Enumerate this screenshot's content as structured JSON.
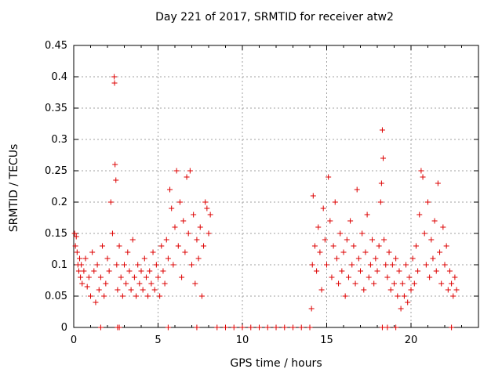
{
  "chart_data": {
    "type": "scatter",
    "title": "Day 221 of 2017, SRMTID for receiver atw2",
    "xlabel": "GPS time / hours",
    "ylabel": "SRMTID / TECUs",
    "xlim": [
      0,
      24
    ],
    "ylim": [
      0,
      0.45
    ],
    "xticks": [
      0,
      5,
      10,
      15,
      20
    ],
    "xtick_labels": [
      "0",
      "5",
      "10",
      "15",
      "20"
    ],
    "yticks": [
      0,
      0.05,
      0.1,
      0.15,
      0.2,
      0.25,
      0.3,
      0.35,
      0.4,
      0.45
    ],
    "ytick_labels": [
      "0",
      "0.05",
      "0.1",
      "0.15",
      "0.2",
      "0.25",
      "0.3",
      "0.35",
      "0.4",
      "0.45"
    ],
    "grid": true,
    "marker": "+",
    "color": "#dd0000",
    "series": [
      {
        "name": "SRMTID",
        "points": [
          [
            0.05,
            0.15
          ],
          [
            0.1,
            0.13
          ],
          [
            0.15,
            0.145
          ],
          [
            0.2,
            0.12
          ],
          [
            0.25,
            0.1
          ],
          [
            0.3,
            0.09
          ],
          [
            0.35,
            0.11
          ],
          [
            0.4,
            0.08
          ],
          [
            0.45,
            0.1
          ],
          [
            0.5,
            0.07
          ],
          [
            0.6,
            0.09
          ],
          [
            0.7,
            0.11
          ],
          [
            0.8,
            0.065
          ],
          [
            0.9,
            0.08
          ],
          [
            1.0,
            0.05
          ],
          [
            1.1,
            0.12
          ],
          [
            1.2,
            0.09
          ],
          [
            1.3,
            0.04
          ],
          [
            1.4,
            0.1
          ],
          [
            1.5,
            0.06
          ],
          [
            1.6,
            0.08
          ],
          [
            1.7,
            0.13
          ],
          [
            1.8,
            0.05
          ],
          [
            1.9,
            0.07
          ],
          [
            2.0,
            0.11
          ],
          [
            2.1,
            0.09
          ],
          [
            2.2,
            0.2
          ],
          [
            2.3,
            0.15
          ],
          [
            2.4,
            0.4
          ],
          [
            2.42,
            0.39
          ],
          [
            2.45,
            0.26
          ],
          [
            2.5,
            0.235
          ],
          [
            2.55,
            0.1
          ],
          [
            2.6,
            0.06
          ],
          [
            2.7,
            0.13
          ],
          [
            2.8,
            0.08
          ],
          [
            2.9,
            0.05
          ],
          [
            3.0,
            0.1
          ],
          [
            3.1,
            0.07
          ],
          [
            3.2,
            0.12
          ],
          [
            3.3,
            0.09
          ],
          [
            3.4,
            0.06
          ],
          [
            3.5,
            0.14
          ],
          [
            3.6,
            0.08
          ],
          [
            3.7,
            0.05
          ],
          [
            3.8,
            0.1
          ],
          [
            3.9,
            0.07
          ],
          [
            4.0,
            0.09
          ],
          [
            4.1,
            0.06
          ],
          [
            4.2,
            0.11
          ],
          [
            4.3,
            0.08
          ],
          [
            4.4,
            0.05
          ],
          [
            4.5,
            0.09
          ],
          [
            4.6,
            0.07
          ],
          [
            4.7,
            0.12
          ],
          [
            4.8,
            0.06
          ],
          [
            4.9,
            0.1
          ],
          [
            5.0,
            0.08
          ],
          [
            5.1,
            0.05
          ],
          [
            5.2,
            0.13
          ],
          [
            5.3,
            0.09
          ],
          [
            5.4,
            0.07
          ],
          [
            5.5,
            0.14
          ],
          [
            5.6,
            0.11
          ],
          [
            5.7,
            0.22
          ],
          [
            5.8,
            0.19
          ],
          [
            5.9,
            0.1
          ],
          [
            6.0,
            0.16
          ],
          [
            6.1,
            0.25
          ],
          [
            6.2,
            0.13
          ],
          [
            6.3,
            0.2
          ],
          [
            6.4,
            0.08
          ],
          [
            6.5,
            0.17
          ],
          [
            6.6,
            0.12
          ],
          [
            6.7,
            0.24
          ],
          [
            6.8,
            0.15
          ],
          [
            6.9,
            0.25
          ],
          [
            7.0,
            0.1
          ],
          [
            7.1,
            0.18
          ],
          [
            7.2,
            0.07
          ],
          [
            7.3,
            0.14
          ],
          [
            7.4,
            0.11
          ],
          [
            7.5,
            0.16
          ],
          [
            7.6,
            0.05
          ],
          [
            7.7,
            0.13
          ],
          [
            7.8,
            0.2
          ],
          [
            7.9,
            0.19
          ],
          [
            8.0,
            0.15
          ],
          [
            8.1,
            0.18
          ],
          [
            14.1,
            0.03
          ],
          [
            14.15,
            0.1
          ],
          [
            14.2,
            0.21
          ],
          [
            14.3,
            0.13
          ],
          [
            14.4,
            0.09
          ],
          [
            14.5,
            0.16
          ],
          [
            14.6,
            0.12
          ],
          [
            14.7,
            0.06
          ],
          [
            14.8,
            0.19
          ],
          [
            14.9,
            0.14
          ],
          [
            15.0,
            0.1
          ],
          [
            15.1,
            0.24
          ],
          [
            15.2,
            0.17
          ],
          [
            15.3,
            0.08
          ],
          [
            15.4,
            0.13
          ],
          [
            15.5,
            0.2
          ],
          [
            15.6,
            0.11
          ],
          [
            15.7,
            0.07
          ],
          [
            15.8,
            0.15
          ],
          [
            15.9,
            0.09
          ],
          [
            16.0,
            0.12
          ],
          [
            16.1,
            0.05
          ],
          [
            16.2,
            0.14
          ],
          [
            16.3,
            0.08
          ],
          [
            16.4,
            0.17
          ],
          [
            16.5,
            0.1
          ],
          [
            16.6,
            0.13
          ],
          [
            16.7,
            0.07
          ],
          [
            16.8,
            0.22
          ],
          [
            16.9,
            0.11
          ],
          [
            17.0,
            0.09
          ],
          [
            17.1,
            0.15
          ],
          [
            17.2,
            0.06
          ],
          [
            17.3,
            0.12
          ],
          [
            17.4,
            0.18
          ],
          [
            17.5,
            0.08
          ],
          [
            17.6,
            0.1
          ],
          [
            17.7,
            0.14
          ],
          [
            17.8,
            0.07
          ],
          [
            17.9,
            0.11
          ],
          [
            18.0,
            0.09
          ],
          [
            18.1,
            0.13
          ],
          [
            18.2,
            0.2
          ],
          [
            18.25,
            0.23
          ],
          [
            18.3,
            0.315
          ],
          [
            18.35,
            0.27
          ],
          [
            18.4,
            0.14
          ],
          [
            18.5,
            0.1
          ],
          [
            18.6,
            0.08
          ],
          [
            18.7,
            0.12
          ],
          [
            18.8,
            0.06
          ],
          [
            18.9,
            0.1
          ],
          [
            19.0,
            0.07
          ],
          [
            19.1,
            0.11
          ],
          [
            19.2,
            0.05
          ],
          [
            19.3,
            0.09
          ],
          [
            19.4,
            0.03
          ],
          [
            19.5,
            0.07
          ],
          [
            19.6,
            0.05
          ],
          [
            19.7,
            0.1
          ],
          [
            19.8,
            0.04
          ],
          [
            19.9,
            0.08
          ],
          [
            20.0,
            0.06
          ],
          [
            20.1,
            0.11
          ],
          [
            20.2,
            0.07
          ],
          [
            20.3,
            0.13
          ],
          [
            20.4,
            0.09
          ],
          [
            20.5,
            0.18
          ],
          [
            20.6,
            0.25
          ],
          [
            20.7,
            0.24
          ],
          [
            20.8,
            0.15
          ],
          [
            20.9,
            0.1
          ],
          [
            21.0,
            0.2
          ],
          [
            21.1,
            0.08
          ],
          [
            21.2,
            0.14
          ],
          [
            21.3,
            0.11
          ],
          [
            21.4,
            0.17
          ],
          [
            21.5,
            0.09
          ],
          [
            21.6,
            0.23
          ],
          [
            21.7,
            0.12
          ],
          [
            21.8,
            0.07
          ],
          [
            21.9,
            0.16
          ],
          [
            22.0,
            0.1
          ],
          [
            22.1,
            0.13
          ],
          [
            22.2,
            0.06
          ],
          [
            22.3,
            0.09
          ],
          [
            22.4,
            0.07
          ],
          [
            22.5,
            0.05
          ],
          [
            22.6,
            0.08
          ],
          [
            22.7,
            0.06
          ]
        ]
      }
    ],
    "zero_points_x": [
      1.6,
      2.6,
      2.7,
      5.6,
      7.3,
      8.5,
      9.0,
      9.5,
      10.0,
      10.5,
      11.0,
      11.5,
      12.0,
      12.5,
      13.0,
      13.5,
      14.0,
      18.3,
      18.6,
      19.1,
      22.4
    ]
  }
}
